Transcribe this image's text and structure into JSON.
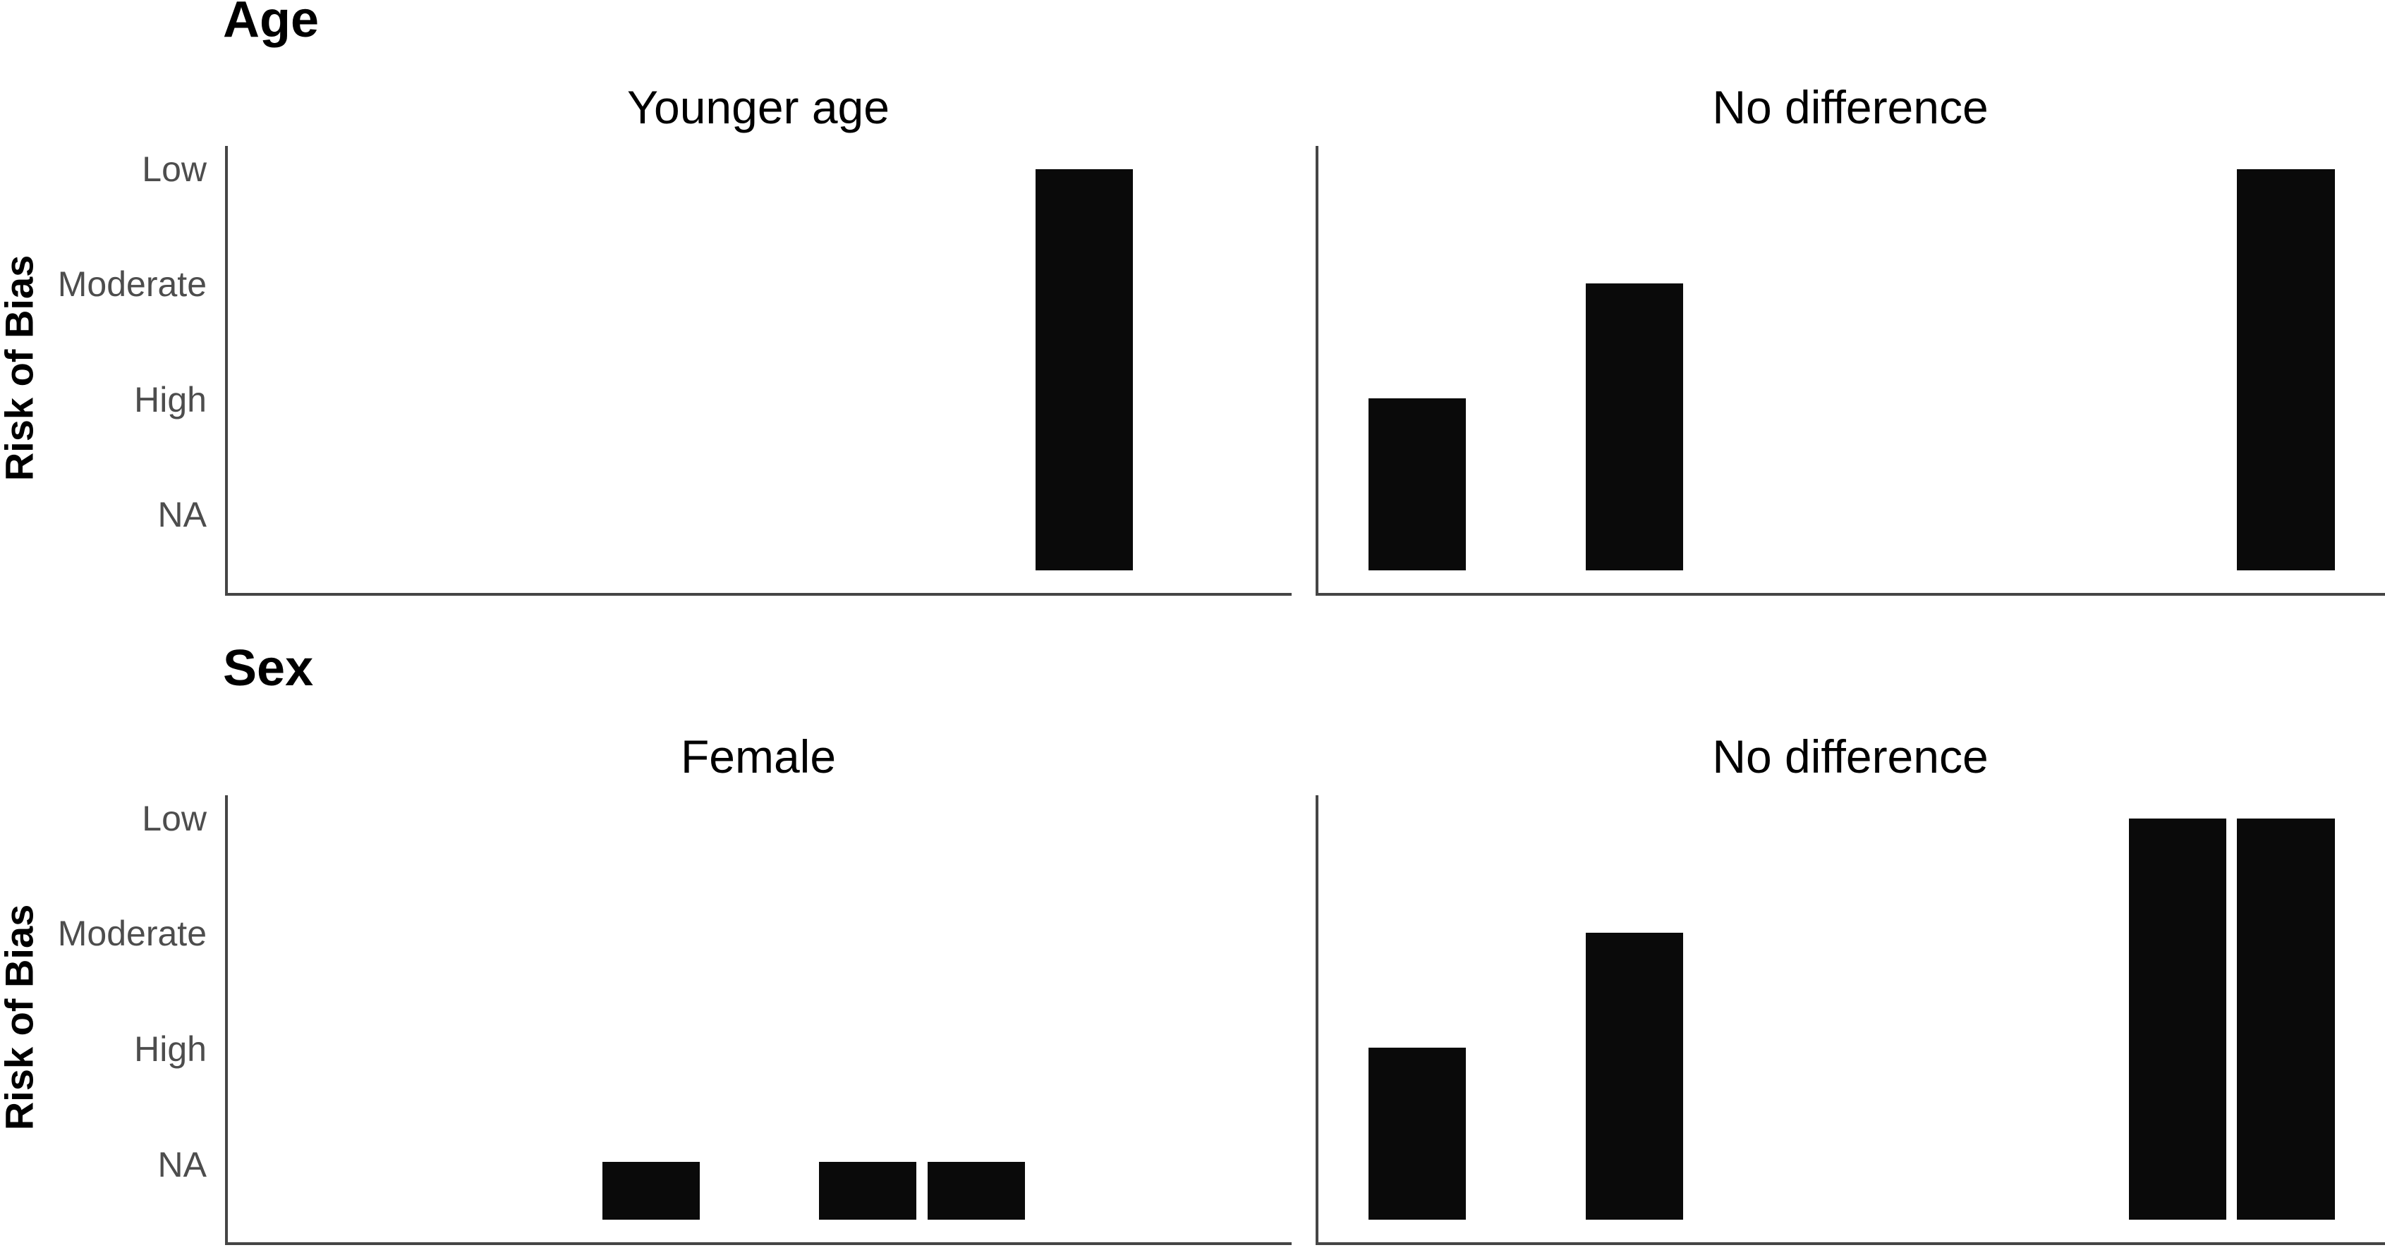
{
  "figure": {
    "ylabel": "Risk of Bias",
    "colors": {
      "bar": "#0a0a0a",
      "axis": "#454545",
      "tick_label": "#4d4d4d",
      "text": "#000000"
    }
  },
  "chart_data": [
    {
      "type": "bar",
      "title": "Age",
      "ylabel": "Risk of Bias",
      "y_categories": [
        "Low",
        "Moderate",
        "High",
        "NA"
      ],
      "x_axis": {
        "slots": 9,
        "labels_shown": false
      },
      "layout_hints": {
        "grid": false,
        "bar_first_left_frac": 0.047,
        "bar_pitch_frac": 0.1018,
        "bar_width_frac": 0.0915,
        "level_top_frac": {
          "Low": 0.0516,
          "Moderate": 0.3078,
          "High": 0.5643,
          "NA": 0.8203
        },
        "bar_base_frac": 0.9498
      },
      "facets": [
        {
          "label": "Younger age",
          "bars": [
            {
              "slot": 7,
              "risk": "Low"
            }
          ]
        },
        {
          "label": "No difference",
          "bars": [
            {
              "slot": 0,
              "risk": "High"
            },
            {
              "slot": 2,
              "risk": "Moderate"
            },
            {
              "slot": 8,
              "risk": "Low"
            }
          ]
        }
      ]
    },
    {
      "type": "bar",
      "title": "Sex",
      "ylabel": "Risk of Bias",
      "y_categories": [
        "Low",
        "Moderate",
        "High",
        "NA"
      ],
      "x_axis": {
        "slots": 9,
        "labels_shown": false
      },
      "layout_hints": {
        "grid": false,
        "bar_first_left_frac": 0.047,
        "bar_pitch_frac": 0.1018,
        "bar_width_frac": 0.0915,
        "level_top_frac": {
          "Low": 0.0516,
          "Moderate": 0.3078,
          "High": 0.5643,
          "NA": 0.8203
        },
        "bar_base_frac": 0.9498
      },
      "facets": [
        {
          "label": "Female",
          "bars": [
            {
              "slot": 3,
              "risk": "NA"
            },
            {
              "slot": 5,
              "risk": "NA"
            },
            {
              "slot": 6,
              "risk": "NA"
            }
          ]
        },
        {
          "label": "No difference",
          "bars": [
            {
              "slot": 0,
              "risk": "High"
            },
            {
              "slot": 2,
              "risk": "Moderate"
            },
            {
              "slot": 7,
              "risk": "Low"
            },
            {
              "slot": 8,
              "risk": "Low"
            }
          ]
        }
      ]
    }
  ]
}
